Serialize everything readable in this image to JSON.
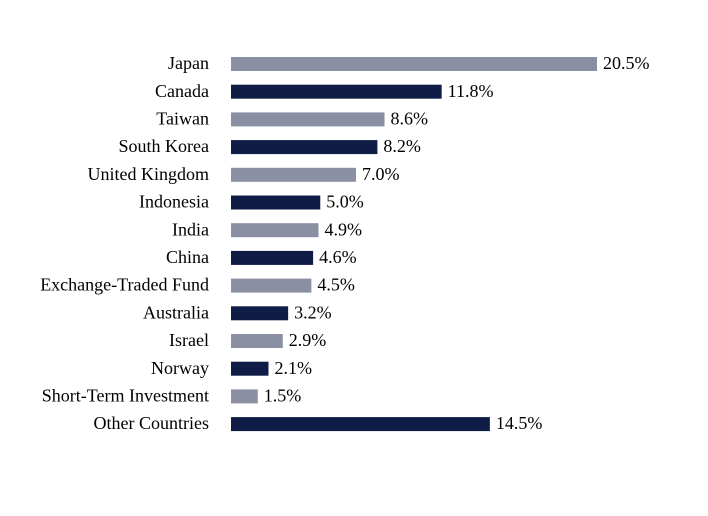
{
  "chart_data": {
    "type": "bar",
    "orientation": "horizontal",
    "categories": [
      "Japan",
      "Canada",
      "Taiwan",
      "South Korea",
      "United Kingdom",
      "Indonesia",
      "India",
      "China",
      "Exchange-Traded Fund",
      "Australia",
      "Israel",
      "Norway",
      "Short-Term Investment",
      "Other Countries"
    ],
    "values": [
      20.5,
      11.8,
      8.6,
      8.2,
      7.0,
      5.0,
      4.9,
      4.6,
      4.5,
      3.2,
      2.9,
      2.1,
      1.5,
      14.5
    ],
    "value_labels": [
      "20.5%",
      "11.8%",
      "8.6%",
      "8.2%",
      "7.0%",
      "5.0%",
      "4.9%",
      "4.6%",
      "4.5%",
      "3.2%",
      "2.9%",
      "2.1%",
      "1.5%",
      "14.5%"
    ],
    "colors": [
      "#8a8fa3",
      "#0f1c45",
      "#8a8fa3",
      "#0f1c45",
      "#8a8fa3",
      "#0f1c45",
      "#8a8fa3",
      "#0f1c45",
      "#8a8fa3",
      "#0f1c45",
      "#8a8fa3",
      "#0f1c45",
      "#8a8fa3",
      "#0f1c45"
    ]
  }
}
